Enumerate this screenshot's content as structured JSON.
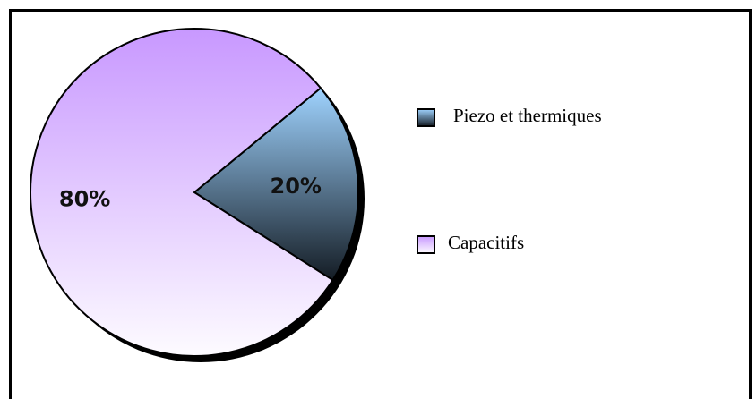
{
  "chart_data": {
    "type": "pie",
    "categories": [
      "Piezo et thermiques",
      "Capacitifs"
    ],
    "values": [
      20,
      80
    ],
    "value_labels": [
      "20%",
      "80%"
    ],
    "colors": [
      "#9fd3ff",
      "#c898ff"
    ]
  }
}
